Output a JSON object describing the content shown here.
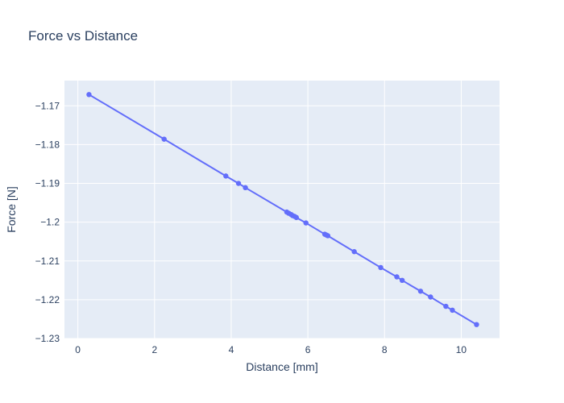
{
  "chart_data": {
    "type": "scatter",
    "mode": "lines+markers",
    "title": "Force vs Distance",
    "xlabel": "Distance [mm]",
    "ylabel": "Force [N]",
    "xlim": [
      -0.35,
      11.0
    ],
    "ylim": [
      -1.23,
      -1.1635
    ],
    "xticks": [
      0,
      2,
      4,
      6,
      8,
      10
    ],
    "xtick_labels": [
      "0",
      "2",
      "4",
      "6",
      "8",
      "10"
    ],
    "yticks": [
      -1.23,
      -1.22,
      -1.21,
      -1.2,
      -1.19,
      -1.18,
      -1.17
    ],
    "ytick_labels": [
      "−1.23",
      "−1.22",
      "−1.21",
      "−1.2",
      "−1.19",
      "−1.18",
      "−1.17"
    ],
    "grid": true,
    "legend": false,
    "series": [
      {
        "color": "#636efa",
        "x": [
          0.29,
          2.25,
          3.86,
          4.19,
          4.37,
          5.45,
          5.5,
          5.56,
          5.6,
          5.65,
          5.7,
          5.95,
          6.44,
          6.48,
          6.52,
          7.21,
          7.9,
          8.32,
          8.46,
          8.94,
          9.2,
          9.6,
          9.77,
          10.4
        ],
        "y": [
          -1.1671,
          -1.1786,
          -1.1881,
          -1.19,
          -1.1911,
          -1.1974,
          -1.1977,
          -1.198,
          -1.1983,
          -1.1985,
          -1.1988,
          -1.2002,
          -1.2031,
          -1.2033,
          -1.2035,
          -1.2076,
          -1.2117,
          -1.2141,
          -1.215,
          -1.2178,
          -1.2193,
          -1.2217,
          -1.2227,
          -1.2264
        ]
      }
    ]
  },
  "colors": {
    "plot_background": "#e5ecf6",
    "grid": "#ffffff",
    "text": "#2a3f5f",
    "series": "#636efa"
  }
}
